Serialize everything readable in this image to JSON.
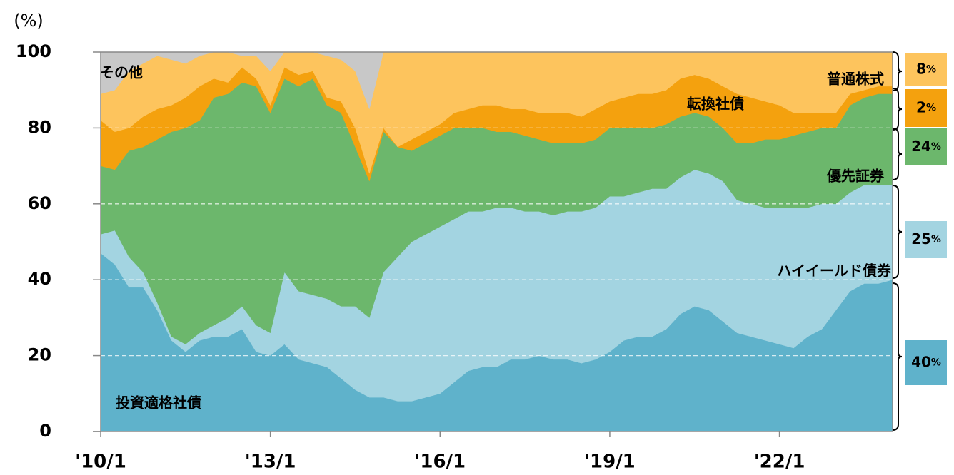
{
  "chart_data": {
    "type": "stacked_area",
    "ylabel": "(%)",
    "unit": "%",
    "xlim": [
      2010,
      2024
    ],
    "xticks": [
      {
        "value": 2010,
        "label": "'10/1"
      },
      {
        "value": 2013,
        "label": "'13/1"
      },
      {
        "value": 2016,
        "label": "'16/1"
      },
      {
        "value": 2019,
        "label": "'19/1"
      },
      {
        "value": 2022,
        "label": "'22/1"
      }
    ],
    "ylim": [
      0,
      100
    ],
    "yticks": [
      0,
      20,
      40,
      60,
      80,
      100
    ],
    "grid": true,
    "x": [
      2010,
      2010.25,
      2010.5,
      2010.75,
      2011,
      2011.25,
      2011.5,
      2011.75,
      2012,
      2012.25,
      2012.5,
      2012.75,
      2013,
      2013.25,
      2013.5,
      2013.75,
      2014,
      2014.25,
      2014.5,
      2014.75,
      2015,
      2015.25,
      2015.5,
      2015.75,
      2016,
      2016.25,
      2016.5,
      2016.75,
      2017,
      2017.25,
      2017.5,
      2017.75,
      2018,
      2018.25,
      2018.5,
      2018.75,
      2019,
      2019.25,
      2019.5,
      2019.75,
      2020,
      2020.25,
      2020.5,
      2020.75,
      2021,
      2021.25,
      2021.5,
      2021.75,
      2022,
      2022.25,
      2022.5,
      2022.75,
      2023,
      2023.25,
      2023.5,
      2023.75,
      2024
    ],
    "series": [
      {
        "name": "投資適格社債",
        "color": "#5fb2cb",
        "latest": 40,
        "values": [
          47,
          44,
          38,
          38,
          32,
          24,
          21,
          24,
          25,
          25,
          27,
          21,
          20,
          23,
          19,
          18,
          17,
          14,
          11,
          9,
          9,
          8,
          8,
          9,
          10,
          13,
          16,
          17,
          17,
          19,
          19,
          20,
          19,
          19,
          18,
          19,
          21,
          24,
          25,
          25,
          27,
          31,
          33,
          32,
          29,
          26,
          25,
          24,
          23,
          22,
          25,
          27,
          32,
          37,
          39,
          39,
          40
        ]
      },
      {
        "name": "ハイイールド債券",
        "color": "#a3d4e1",
        "latest": 25,
        "values": [
          5,
          9,
          8,
          4,
          2,
          1,
          2,
          2,
          3,
          5,
          6,
          7,
          6,
          19,
          18,
          18,
          18,
          19,
          22,
          21,
          33,
          38,
          42,
          43,
          44,
          43,
          42,
          41,
          42,
          40,
          39,
          38,
          38,
          39,
          40,
          40,
          41,
          38,
          38,
          39,
          37,
          36,
          36,
          36,
          37,
          35,
          35,
          35,
          36,
          37,
          34,
          33,
          28,
          26,
          26,
          26,
          25
        ]
      },
      {
        "name": "優先証券",
        "color": "#6cb76c",
        "latest": 24,
        "values": [
          18,
          16,
          28,
          33,
          43,
          54,
          57,
          56,
          60,
          59,
          59,
          63,
          58,
          51,
          54,
          57,
          51,
          51,
          42,
          36,
          37,
          29,
          24,
          24,
          24,
          24,
          22,
          22,
          20,
          20,
          20,
          19,
          19,
          18,
          18,
          18,
          18,
          18,
          17,
          16,
          17,
          16,
          15,
          15,
          14,
          15,
          16,
          18,
          18,
          19,
          20,
          20,
          20,
          23,
          23,
          24,
          24
        ]
      },
      {
        "name": "転換社債",
        "color": "#f4a10e",
        "latest": 2,
        "values": [
          12,
          10,
          6,
          8,
          8,
          7,
          8,
          9,
          5,
          3,
          4,
          2,
          2,
          3,
          3,
          2,
          2,
          3,
          5,
          2,
          1,
          0,
          3,
          3,
          3,
          4,
          5,
          6,
          7,
          6,
          7,
          7,
          8,
          8,
          7,
          8,
          7,
          8,
          9,
          9,
          9,
          10,
          10,
          10,
          11,
          13,
          12,
          10,
          9,
          6,
          5,
          4,
          4,
          3,
          2,
          2,
          2
        ]
      },
      {
        "name": "普通株式",
        "color": "#fdc45d",
        "latest": 8,
        "values": [
          7,
          11,
          15,
          14,
          14,
          12,
          9,
          8,
          7,
          8,
          3,
          6,
          9,
          4,
          6,
          5,
          11,
          11,
          15,
          17,
          20,
          25,
          23,
          21,
          19,
          16,
          15,
          14,
          14,
          15,
          15,
          16,
          16,
          16,
          17,
          15,
          13,
          12,
          11,
          11,
          10,
          7,
          6,
          7,
          9,
          11,
          12,
          13,
          14,
          16,
          16,
          16,
          16,
          11,
          10,
          9,
          9
        ]
      },
      {
        "name": "その他",
        "color": "#c8c8c8",
        "values": [
          11,
          10,
          5,
          3,
          1,
          2,
          3,
          1,
          0,
          0,
          1,
          1,
          5,
          0,
          0,
          0,
          1,
          2,
          5,
          15,
          0,
          0,
          0,
          0,
          0,
          0,
          0,
          0,
          0,
          0,
          0,
          0,
          0,
          0,
          0,
          0,
          0,
          0,
          0,
          0,
          0,
          0,
          0,
          0,
          0,
          0,
          0,
          0,
          0,
          0,
          0,
          0,
          0,
          0,
          0,
          0,
          0
        ]
      }
    ]
  }
}
